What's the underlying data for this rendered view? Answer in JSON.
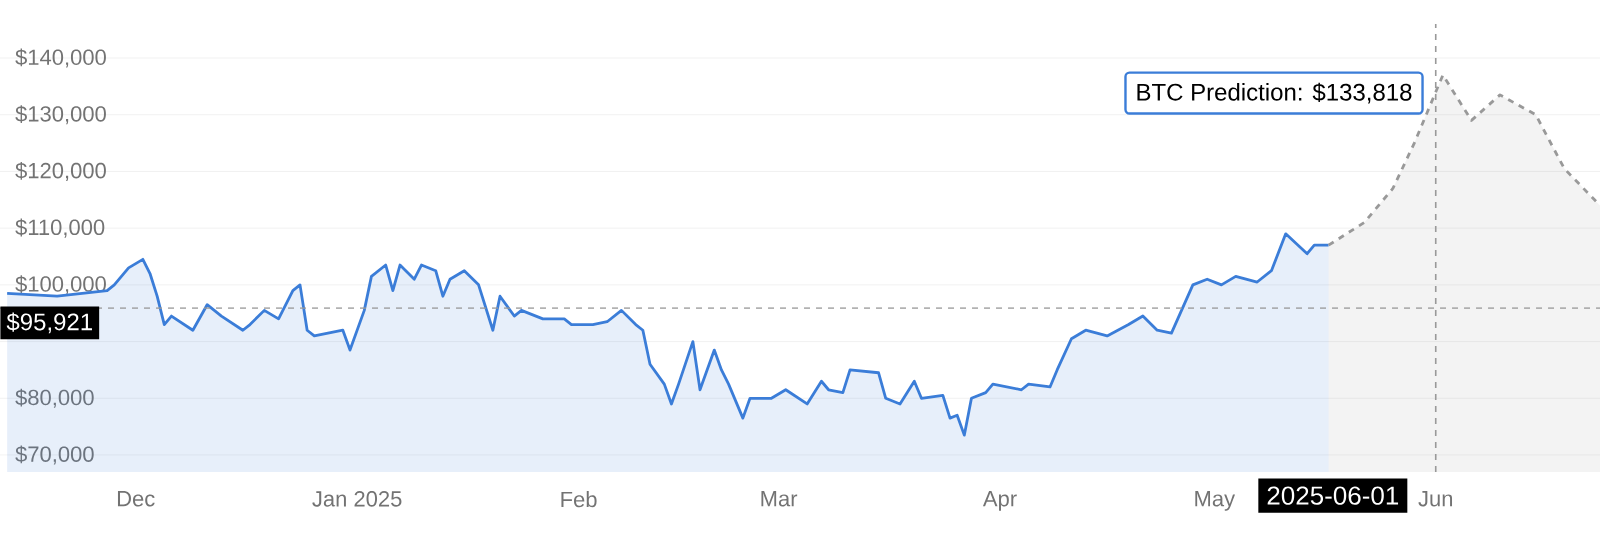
{
  "chart_data": {
    "type": "area",
    "xlim": [
      "2024-11-12",
      "2025-06-24"
    ],
    "ylim": [
      67000,
      146000
    ],
    "xticks": [
      {
        "value": "2024-12-01",
        "label": "Dec"
      },
      {
        "value": "2025-01-01",
        "label": "Jan 2025"
      },
      {
        "value": "2025-02-01",
        "label": "Feb"
      },
      {
        "value": "2025-03-01",
        "label": "Mar"
      },
      {
        "value": "2025-04-01",
        "label": "Apr"
      },
      {
        "value": "2025-05-01",
        "label": "May"
      },
      {
        "value": "2025-06-01",
        "label": "Jun"
      }
    ],
    "yticks": [
      {
        "value": 70000,
        "label": "$70,000"
      },
      {
        "value": 80000,
        "label": "$80,000"
      },
      {
        "value": 90000,
        "label": null
      },
      {
        "value": 100000,
        "label": "$100,000"
      },
      {
        "value": 110000,
        "label": "$110,000"
      },
      {
        "value": 120000,
        "label": "$120,000"
      },
      {
        "value": 130000,
        "label": "$130,000"
      },
      {
        "value": 140000,
        "label": "$140,000"
      }
    ],
    "grid": "y",
    "series": [
      {
        "color": "#3b7dd8",
        "line_style": "solid",
        "x": [
          "2024-11-13",
          "2024-11-20",
          "2024-11-27",
          "2024-11-28",
          "2024-11-30",
          "2024-12-02",
          "2024-12-03",
          "2024-12-04",
          "2024-12-05",
          "2024-12-06",
          "2024-12-09",
          "2024-12-11",
          "2024-12-13",
          "2024-12-16",
          "2024-12-17",
          "2024-12-19",
          "2024-12-21",
          "2024-12-23",
          "2024-12-24",
          "2024-12-25",
          "2024-12-26",
          "2024-12-30",
          "2024-12-31",
          "2025-01-02",
          "2025-01-03",
          "2025-01-05",
          "2025-01-06",
          "2025-01-07",
          "2025-01-09",
          "2025-01-10",
          "2025-01-12",
          "2025-01-13",
          "2025-01-14",
          "2025-01-16",
          "2025-01-18",
          "2025-01-20",
          "2025-01-21",
          "2025-01-23",
          "2025-01-24",
          "2025-01-27",
          "2025-01-30",
          "2025-01-31",
          "2025-02-03",
          "2025-02-05",
          "2025-02-07",
          "2025-02-09",
          "2025-02-10",
          "2025-02-11",
          "2025-02-13",
          "2025-02-14",
          "2025-02-15",
          "2025-02-17",
          "2025-02-18",
          "2025-02-20",
          "2025-02-21",
          "2025-02-22",
          "2025-02-24",
          "2025-02-25",
          "2025-02-28",
          "2025-03-02",
          "2025-03-05",
          "2025-03-07",
          "2025-03-08",
          "2025-03-10",
          "2025-03-11",
          "2025-03-15",
          "2025-03-16",
          "2025-03-18",
          "2025-03-20",
          "2025-03-21",
          "2025-03-24",
          "2025-03-25",
          "2025-03-26",
          "2025-03-27",
          "2025-03-28",
          "2025-03-30",
          "2025-03-31",
          "2025-04-04",
          "2025-04-05",
          "2025-04-08",
          "2025-04-09",
          "2025-04-11",
          "2025-04-13",
          "2025-04-16",
          "2025-04-19",
          "2025-04-21",
          "2025-04-23",
          "2025-04-25",
          "2025-04-28",
          "2025-04-30",
          "2025-05-02",
          "2025-05-04",
          "2025-05-07",
          "2025-05-09",
          "2025-05-11",
          "2025-05-14",
          "2025-05-15",
          "2025-05-17"
        ],
        "values": [
          98500,
          98000,
          99000,
          100000,
          103000,
          104500,
          102000,
          98000,
          93000,
          94500,
          92000,
          96500,
          94500,
          92000,
          93000,
          95500,
          94000,
          99000,
          100000,
          92000,
          91000,
          92000,
          88500,
          95500,
          101500,
          103500,
          99000,
          103500,
          101000,
          103500,
          102500,
          98000,
          101000,
          102500,
          100000,
          92000,
          98000,
          94500,
          95500,
          94000,
          94000,
          93000,
          93000,
          93500,
          95500,
          93000,
          92000,
          86000,
          82500,
          79000,
          82500,
          90000,
          81500,
          88500,
          85000,
          82500,
          76500,
          80000,
          80000,
          81500,
          79000,
          83000,
          81500,
          81000,
          85000,
          84500,
          80000,
          79000,
          83000,
          80000,
          80500,
          76500,
          77000,
          73500,
          80000,
          81000,
          82500,
          81500,
          82500,
          82000,
          85000,
          90500,
          92000,
          91000,
          93000,
          94500,
          92000,
          91500,
          100000,
          101000,
          100000,
          101500,
          100500,
          102500,
          109000,
          105500,
          107000,
          107000
        ]
      },
      {
        "color": "#999999",
        "line_style": "dashed",
        "x": [
          "2025-05-17",
          "2025-05-22",
          "2025-05-26",
          "2025-05-29",
          "2025-06-01",
          "2025-06-02",
          "2025-06-06",
          "2025-06-10",
          "2025-06-15",
          "2025-06-19",
          "2025-06-24"
        ],
        "values": [
          107000,
          111000,
          117000,
          125000,
          134000,
          137000,
          129000,
          133500,
          130000,
          120500,
          114000
        ]
      }
    ],
    "ref_lines": [
      {
        "axis": "y",
        "value": 95921,
        "label": "$95,921",
        "color": "#999999",
        "line_style": "dashed"
      },
      {
        "axis": "x",
        "value": "2025-06-01",
        "label": "2025-06-01",
        "color": "#999999",
        "line_style": "dashed"
      }
    ],
    "annotations": [
      {
        "text": "BTC Prediction: $133,818",
        "x": "2025-06-01",
        "y": 133818
      }
    ]
  }
}
